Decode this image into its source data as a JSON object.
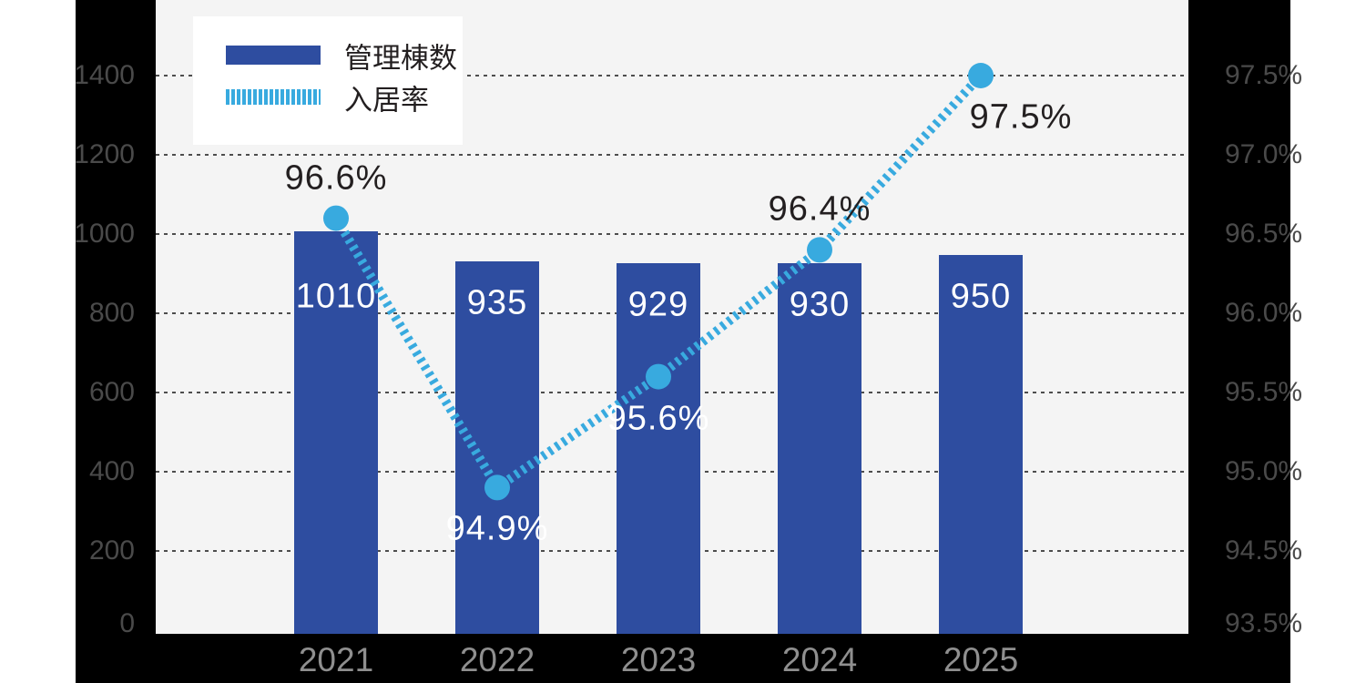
{
  "chart_data": {
    "type": "bar+line",
    "categories": [
      "2021",
      "2022",
      "2023",
      "2024",
      "2025"
    ],
    "series": [
      {
        "name": "管理棟数",
        "type": "bar",
        "axis": "left",
        "values": [
          1010,
          935,
          929,
          930,
          950
        ],
        "labels": [
          "1010",
          "935",
          "929",
          "930",
          "950"
        ],
        "color": "#2e4da0"
      },
      {
        "name": "入居率",
        "type": "dashed-line",
        "axis": "right",
        "values": [
          96.6,
          94.9,
          95.6,
          96.4,
          97.5
        ],
        "labels": [
          "96.6%",
          "94.9%",
          "95.6%",
          "96.4%",
          "97.5%"
        ],
        "label_placement": [
          "above",
          "below",
          "below",
          "above",
          "below-right"
        ],
        "label_tone": [
          "dark",
          "light",
          "light",
          "dark",
          "dark"
        ],
        "color": "#38aadf"
      }
    ],
    "left_axis": {
      "tick_labels": [
        "1400",
        "1200",
        "1000",
        "800",
        "600",
        "400",
        "200",
        "0"
      ],
      "min": 0,
      "max": 1400
    },
    "right_axis": {
      "tick_labels": [
        "97.5%",
        "97.0%",
        "96.5%",
        "96.0%",
        "95.5%",
        "95.0%",
        "94.5%",
        "93.5%"
      ],
      "tick_values": [
        97.5,
        97.0,
        96.5,
        96.0,
        95.5,
        95.0,
        94.5,
        93.5
      ]
    },
    "legend": {
      "position": "top-left",
      "entries": [
        {
          "label": "管理棟数",
          "swatch": "bar"
        },
        {
          "label": "入居率",
          "swatch": "dashed"
        }
      ]
    },
    "grid": "horizontal-dashed"
  },
  "colors": {
    "bar": "#2e4da0",
    "line": "#38aadf",
    "plot_bg": "#f4f4f4",
    "panel_bg": "#000000",
    "page_bg": "#ffffff",
    "axis_label": "#4a4a4a",
    "year_label": "#8f8f8f",
    "grid_line": "#4d4d4d",
    "data_label_dark": "#231f20",
    "data_label_light": "#ffffff"
  }
}
